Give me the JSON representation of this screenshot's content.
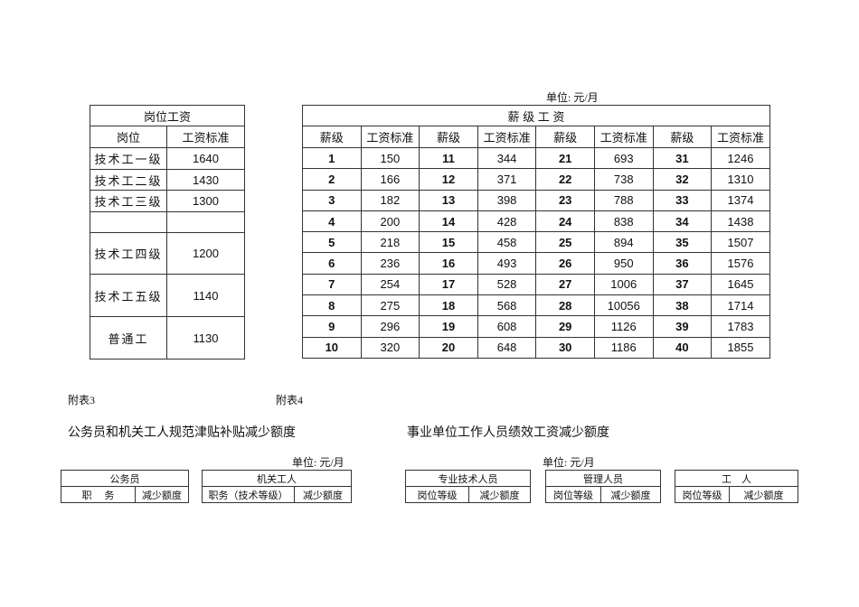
{
  "unit_label": "单位:  元/月",
  "post_table": {
    "title": "岗位工资",
    "headers": [
      "岗位",
      "工资标准"
    ],
    "rows": [
      [
        "技术工一级",
        "1640"
      ],
      [
        "技术工二级",
        "1430"
      ],
      [
        "技术工三级",
        "1300"
      ],
      [
        "",
        ""
      ],
      [
        "技术工四级",
        "1200"
      ],
      [
        "技术工五级",
        "1140"
      ],
      [
        "普通工",
        "1130"
      ]
    ]
  },
  "grade_table": {
    "title": "薪 级 工 资",
    "headers": [
      "薪级",
      "工资标准",
      "薪级",
      "工资标准",
      "薪级",
      "工资标准",
      "薪级",
      "工资标准"
    ],
    "rows": [
      [
        "1",
        "150",
        "11",
        "344",
        "21",
        "693",
        "31",
        "1246"
      ],
      [
        "2",
        "166",
        "12",
        "371",
        "22",
        "738",
        "32",
        "1310"
      ],
      [
        "3",
        "182",
        "13",
        "398",
        "23",
        "788",
        "33",
        "1374"
      ],
      [
        "4",
        "200",
        "14",
        "428",
        "24",
        "838",
        "34",
        "1438"
      ],
      [
        "5",
        "218",
        "15",
        "458",
        "25",
        "894",
        "35",
        "1507"
      ],
      [
        "6",
        "236",
        "16",
        "493",
        "26",
        "950",
        "36",
        "1576"
      ],
      [
        "7",
        "254",
        "17",
        "528",
        "27",
        "1006",
        "37",
        "1645"
      ],
      [
        "8",
        "275",
        "18",
        "568",
        "28",
        "10056",
        "38",
        "1714"
      ],
      [
        "9",
        "296",
        "19",
        "608",
        "29",
        "1126",
        "39",
        "1783"
      ],
      [
        "10",
        "320",
        "20",
        "648",
        "30",
        "1186",
        "40",
        "1855"
      ]
    ]
  },
  "appendix3": {
    "label": "附表3",
    "title": "公务员和机关工人规范津贴补贴减少额度",
    "unit": "单位:  元/月",
    "tables": [
      {
        "title": "公务员",
        "cols": [
          "职　 务",
          "减少额度"
        ]
      },
      {
        "title": "机关工人",
        "cols": [
          "职务（技术等级）",
          "减少额度"
        ]
      }
    ]
  },
  "appendix4": {
    "label": "附表4",
    "title": "事业单位工作人员绩效工资减少额度",
    "unit": "单位:  元/月",
    "tables": [
      {
        "title": "专业技术人员",
        "cols": [
          "岗位等级",
          "减少额度"
        ]
      },
      {
        "title": "管理人员",
        "cols": [
          "岗位等级",
          "减少额度"
        ]
      },
      {
        "title": "工　人",
        "cols": [
          "岗位等级",
          "减少额度"
        ]
      }
    ]
  }
}
